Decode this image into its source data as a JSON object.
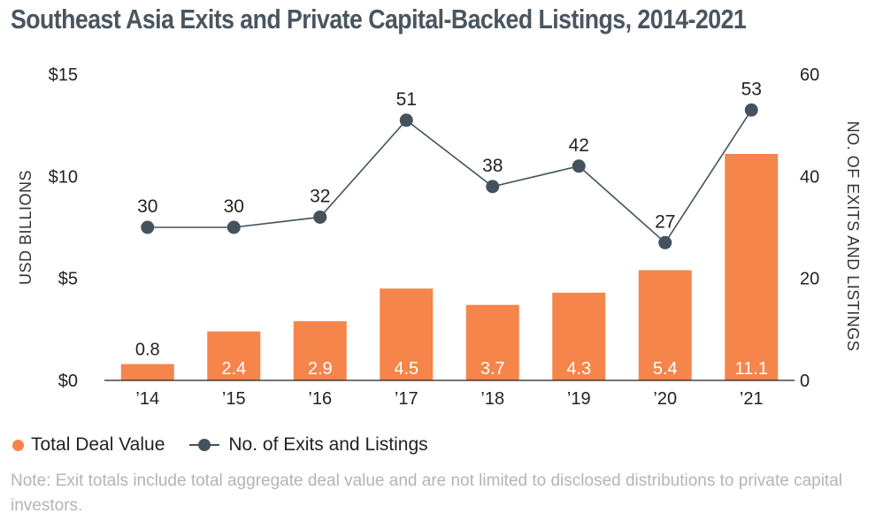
{
  "title": "Southeast Asia Exits and Private Capital-Backed Listings, 2014-2021",
  "colors": {
    "bar": "#f5854a",
    "line": "#44525d",
    "title": "#4a5560",
    "note": "#b4b4b4"
  },
  "legend": {
    "bar_label": "Total Deal Value",
    "line_label": "No. of Exits and Listings"
  },
  "note": "Note: Exit totals include total aggregate deal value and are not limited to disclosed distributions to private capital investors.",
  "chart_data": {
    "type": "bar",
    "categories": [
      "’14",
      "’15",
      "’16",
      "’17",
      "’18",
      "’19",
      "’20",
      "’21"
    ],
    "series": [
      {
        "name": "Total Deal Value",
        "type": "bar",
        "axis": "left",
        "values": [
          0.8,
          2.4,
          2.9,
          4.5,
          3.7,
          4.3,
          5.4,
          11.1
        ],
        "labels": [
          "0.8",
          "2.4",
          "2.9",
          "4.5",
          "3.7",
          "4.3",
          "5.4",
          "11.1"
        ]
      },
      {
        "name": "No. of Exits and Listings",
        "type": "line",
        "axis": "right",
        "values": [
          30,
          30,
          32,
          51,
          38,
          42,
          27,
          53
        ]
      }
    ],
    "y_left": {
      "label": "USD BILLIONS",
      "lim": [
        0,
        15
      ],
      "ticks": [
        0,
        5,
        10,
        15
      ],
      "tick_labels": [
        "$0",
        "$5",
        "$10",
        "$15"
      ]
    },
    "y_right": {
      "label": "NO. OF EXITS AND LISTINGS",
      "lim": [
        0,
        60
      ],
      "ticks": [
        0,
        20,
        40,
        60
      ],
      "tick_labels": [
        "0",
        "20",
        "40",
        "60"
      ]
    },
    "grid": false,
    "legend_position": "bottom-left"
  }
}
